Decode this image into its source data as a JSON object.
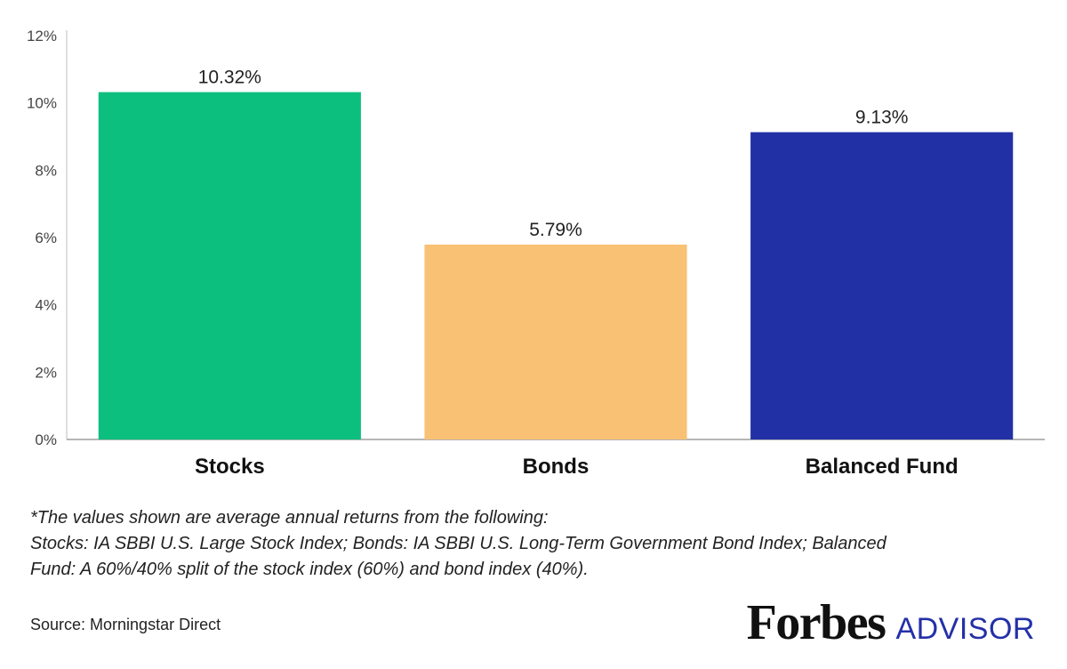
{
  "chart_data": {
    "type": "bar",
    "categories": [
      "Stocks",
      "Bonds",
      "Balanced Fund"
    ],
    "values": [
      10.32,
      5.79,
      9.13
    ],
    "data_labels": [
      "10.32%",
      "5.79%",
      "9.13%"
    ],
    "bar_colors": [
      "#0dbf7f",
      "#f8c174",
      "#2230a6"
    ],
    "ylim": [
      0,
      12
    ],
    "y_ticks": [
      0,
      2,
      4,
      6,
      8,
      10,
      12
    ],
    "y_tick_labels": [
      "0%",
      "2%",
      "4%",
      "6%",
      "8%",
      "10%",
      "12%"
    ],
    "grid": false,
    "title": "",
    "xlabel": "",
    "ylabel": ""
  },
  "footnote": {
    "line1": "*The values shown are average annual returns from the following:",
    "line2": "Stocks: IA SBBI U.S. Large Stock Index; Bonds: IA SBBI U.S. Long-Term Government Bond Index; Balanced",
    "line3": "Fund: A 60%/40% split of the stock index (60%) and bond index (40%)."
  },
  "source": "Source: Morningstar Direct",
  "logo": {
    "brand": "Forbes",
    "sub": "ADVISOR",
    "color": "#2430a8"
  }
}
